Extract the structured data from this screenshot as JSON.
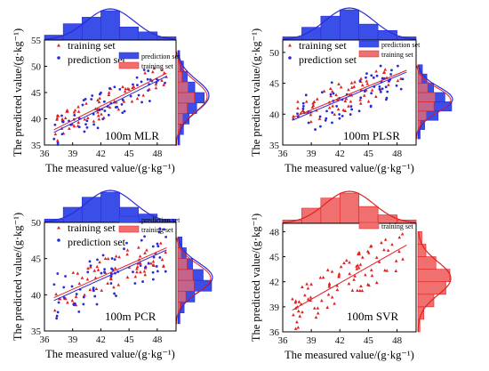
{
  "figure": {
    "xlabel": "The measured value/(g·kg⁻¹)",
    "ylabel": "The predicted value/(g·kg⁻¹)"
  },
  "chart_data": [
    {
      "id": "mlr",
      "type": "scatter",
      "annotation": "100m MLR",
      "xlim": [
        36,
        50
      ],
      "ylim": [
        35,
        55
      ],
      "xticks": [
        36,
        39,
        42,
        45,
        48
      ],
      "yticks": [
        35,
        40,
        45,
        50,
        55
      ],
      "legend": [
        "training set",
        "prediction set"
      ],
      "hist_legend": [
        "prediction set",
        "training set"
      ],
      "fit_lines": [
        {
          "series": "training set",
          "color": "#e02020",
          "x": [
            37,
            49
          ],
          "y": [
            37.9,
            48.7
          ]
        },
        {
          "series": "prediction set",
          "color": "#2a2ad8",
          "x": [
            37,
            49
          ],
          "y": [
            37.4,
            48.1
          ]
        }
      ],
      "x_hist": {
        "bin_edges": [
          36,
          38,
          40,
          42,
          44,
          46,
          48,
          50
        ],
        "prediction": [
          3,
          10,
          14,
          18,
          8,
          5,
          2
        ],
        "training": [
          3,
          9,
          13,
          17,
          9,
          5,
          2
        ]
      },
      "y_hist": {
        "bin_edges": [
          35,
          37,
          39,
          41,
          43,
          45,
          47,
          49,
          51,
          53
        ],
        "prediction": [
          1,
          3,
          6,
          10,
          14,
          9,
          5,
          3,
          1
        ],
        "training": [
          0,
          2,
          5,
          9,
          16,
          10,
          4,
          2,
          0
        ]
      }
    },
    {
      "id": "plsr",
      "type": "scatter",
      "annotation": "100m PLSR",
      "xlim": [
        36,
        50
      ],
      "ylim": [
        35,
        52
      ],
      "xticks": [
        36,
        39,
        42,
        45,
        48
      ],
      "yticks": [
        35,
        40,
        45,
        50
      ],
      "legend": [
        "training set",
        "prediction set"
      ],
      "hist_legend": [
        "prediction set",
        "training set"
      ],
      "fit_lines": [
        {
          "series": "training set",
          "color": "#e02020",
          "x": [
            37,
            49
          ],
          "y": [
            39.4,
            47.1
          ]
        },
        {
          "series": "prediction set",
          "color": "#2a2ad8",
          "x": [
            37,
            49
          ],
          "y": [
            39.0,
            46.8
          ]
        }
      ],
      "x_hist": {
        "bin_edges": [
          36,
          38,
          40,
          42,
          44,
          46,
          48,
          50
        ],
        "prediction": [
          2,
          8,
          15,
          19,
          10,
          6,
          2
        ],
        "training": [
          2,
          8,
          14,
          18,
          10,
          6,
          2
        ]
      },
      "y_hist": {
        "bin_edges": [
          36,
          37.5,
          39,
          40.5,
          42,
          43.5,
          45,
          46.5,
          48
        ],
        "prediction": [
          1,
          3,
          9,
          15,
          12,
          7,
          4,
          2
        ],
        "training": [
          0,
          2,
          7,
          13,
          14,
          8,
          3,
          1
        ]
      }
    },
    {
      "id": "pcr",
      "type": "scatter",
      "annotation": "100m PCR",
      "xlim": [
        36,
        50
      ],
      "ylim": [
        35,
        50
      ],
      "xticks": [
        36,
        39,
        42,
        45,
        48
      ],
      "yticks": [
        35,
        40,
        45,
        50
      ],
      "legend": [
        "training set",
        "prediction set"
      ],
      "hist_legend": [
        "prediction set",
        "training set"
      ],
      "fit_lines": [
        {
          "series": "training set",
          "color": "#e02020",
          "x": [
            37,
            49
          ],
          "y": [
            39.6,
            46.5
          ]
        },
        {
          "series": "prediction set",
          "color": "#2a2ad8",
          "x": [
            37,
            49
          ],
          "y": [
            39.2,
            46.2
          ]
        }
      ],
      "x_hist": {
        "bin_edges": [
          36,
          38,
          40,
          42,
          44,
          46,
          48,
          50
        ],
        "prediction": [
          2,
          9,
          15,
          18,
          9,
          5,
          2
        ],
        "training": [
          2,
          9,
          15,
          17,
          10,
          5,
          2
        ]
      },
      "y_hist": {
        "bin_edges": [
          36,
          37.5,
          39,
          40.5,
          42,
          43.5,
          45,
          46.5,
          48
        ],
        "prediction": [
          1,
          3,
          8,
          16,
          12,
          7,
          4,
          2
        ],
        "training": [
          0,
          2,
          7,
          14,
          13,
          8,
          3,
          1
        ]
      }
    },
    {
      "id": "svr",
      "type": "scatter",
      "annotation": "100m SVR",
      "xlim": [
        36,
        50
      ],
      "ylim": [
        36,
        49
      ],
      "xticks": [
        36,
        39,
        42,
        45,
        48
      ],
      "yticks": [
        36,
        39,
        42,
        45,
        48
      ],
      "legend": [],
      "hist_legend": [
        "training set"
      ],
      "fit_lines": [
        {
          "series": "training set",
          "color": "#e02020",
          "x": [
            37,
            49
          ],
          "y": [
            38.6,
            46.4
          ]
        }
      ],
      "x_hist": {
        "bin_edges": [
          36,
          38,
          40,
          42,
          44,
          46,
          48,
          50
        ],
        "prediction": [],
        "training": [
          2,
          9,
          15,
          18,
          10,
          5,
          2
        ]
      },
      "y_hist": {
        "bin_edges": [
          36,
          37.5,
          39,
          40.5,
          42,
          43.5,
          45,
          46.5,
          48
        ],
        "prediction": [],
        "training": [
          1,
          3,
          8,
          14,
          16,
          9,
          4,
          2
        ]
      }
    }
  ]
}
